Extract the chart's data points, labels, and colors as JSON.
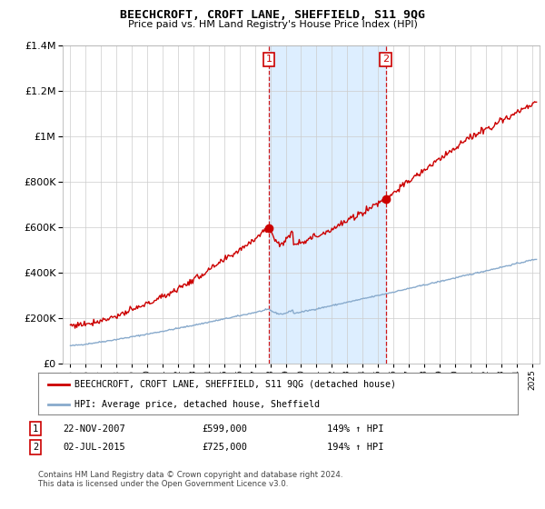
{
  "title": "BEECHCROFT, CROFT LANE, SHEFFIELD, S11 9QG",
  "subtitle": "Price paid vs. HM Land Registry's House Price Index (HPI)",
  "legend_line1": "BEECHCROFT, CROFT LANE, SHEFFIELD, S11 9QG (detached house)",
  "legend_line2": "HPI: Average price, detached house, Sheffield",
  "annotation1": {
    "num": "1",
    "date": "22-NOV-2007",
    "price": "£599,000",
    "pct": "149% ↑ HPI"
  },
  "annotation2": {
    "num": "2",
    "date": "02-JUL-2015",
    "price": "£725,000",
    "pct": "194% ↑ HPI"
  },
  "footer": "Contains HM Land Registry data © Crown copyright and database right 2024.\nThis data is licensed under the Open Government Licence v3.0.",
  "sale1_x": 2007.9,
  "sale1_y": 599000,
  "sale2_x": 2015.5,
  "sale2_y": 725000,
  "vline1_x": 2007.9,
  "vline2_x": 2015.5,
  "red_line_color": "#cc0000",
  "blue_line_color": "#88aacc",
  "vline_color": "#cc0000",
  "background_color": "#ffffff",
  "plot_bg_color": "#ffffff",
  "grid_color": "#cccccc",
  "highlight_color": "#ddeeff",
  "ylim": [
    0,
    1400000
  ],
  "xlim_start": 1994.5,
  "xlim_end": 2025.5
}
